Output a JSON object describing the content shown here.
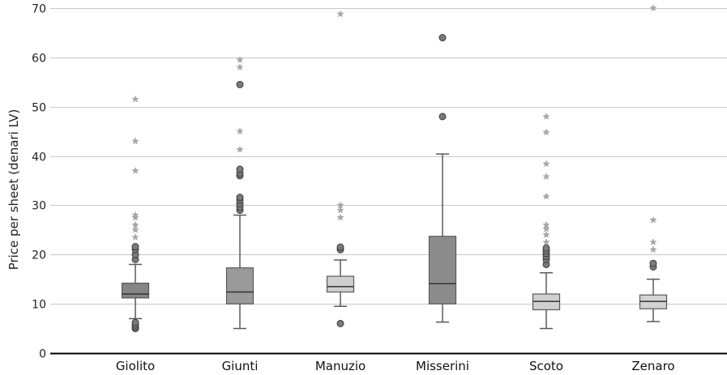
{
  "chart_data": {
    "type": "boxplot",
    "title": "",
    "xlabel": "",
    "ylabel": "Price per sheet (denari LV)",
    "ylim": [
      0,
      70
    ],
    "yticks": [
      0,
      10,
      20,
      30,
      40,
      50,
      60,
      70
    ],
    "grid": "horizontal",
    "legend": "none",
    "categories": [
      "Giolito",
      "Giunti",
      "Manuzio",
      "Misserini",
      "Scoto",
      "Zenaro"
    ],
    "box_colors": [
      "#858585",
      "#9a9a9a",
      "#cfcfcf",
      "#8c8c8c",
      "#d0d0d0",
      "#d3d3d3"
    ],
    "boxes": [
      {
        "category": "Giolito",
        "whisker_low": 7,
        "q1": 11.2,
        "median": 12,
        "q3": 14.2,
        "whisker_high": 18,
        "outliers": [
          5,
          5.3,
          5.7,
          6.2,
          19,
          20,
          21,
          21.6
        ],
        "extremes": [
          23.5,
          25,
          26,
          27.5,
          28,
          37,
          43,
          51.5
        ]
      },
      {
        "category": "Giunti",
        "whisker_low": 5,
        "q1": 10,
        "median": 12.4,
        "q3": 17.3,
        "whisker_high": 28,
        "outliers": [
          29,
          29.6,
          30.3,
          31,
          31.6,
          36,
          36.5,
          37.3,
          54.5
        ],
        "extremes": [
          41.3,
          45,
          58,
          59.5
        ]
      },
      {
        "category": "Manuzio",
        "whisker_low": 9.5,
        "q1": 12.4,
        "median": 13.5,
        "q3": 15.6,
        "whisker_high": 18.9,
        "outliers": [
          6,
          21,
          21.5
        ],
        "extremes": [
          27.5,
          29,
          30,
          68.8
        ]
      },
      {
        "category": "Misserini",
        "whisker_low": 6.3,
        "q1": 10,
        "median": 14.1,
        "q3": 23.7,
        "whisker_high": 40.4,
        "outliers": [
          48,
          64
        ],
        "extremes": []
      },
      {
        "category": "Scoto",
        "whisker_low": 5,
        "q1": 8.8,
        "median": 10.5,
        "q3": 12,
        "whisker_high": 16.3,
        "outliers": [
          18,
          19,
          19.6,
          20.2,
          20.8,
          21.3
        ],
        "extremes": [
          22.5,
          24,
          25.2,
          26,
          31.8,
          35.8,
          38.4,
          44.8,
          48
        ]
      },
      {
        "category": "Zenaro",
        "whisker_low": 6.4,
        "q1": 9,
        "median": 10.5,
        "q3": 11.8,
        "whisker_high": 15,
        "outliers": [
          17.5,
          18.2
        ],
        "extremes": [
          21,
          22.5,
          27,
          70
        ]
      }
    ]
  }
}
